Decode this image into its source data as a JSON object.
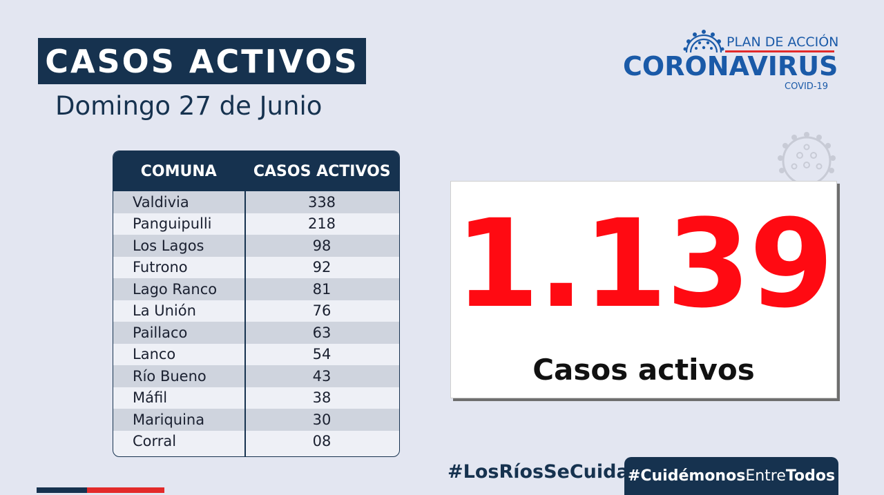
{
  "header": {
    "title": "CASOS ACTIVOS",
    "date": "Domingo 27 de Junio"
  },
  "logo": {
    "line1": "PLAN DE ACCIÓN",
    "line2": "CORONAVIRUS",
    "line3": "COVID-19"
  },
  "table": {
    "headers": [
      "COMUNA",
      "CASOS ACTIVOS"
    ],
    "rows": [
      {
        "comuna": "Valdivia",
        "casos": "338"
      },
      {
        "comuna": "Panguipulli",
        "casos": "218"
      },
      {
        "comuna": "Los Lagos",
        "casos": "98"
      },
      {
        "comuna": "Futrono",
        "casos": "92"
      },
      {
        "comuna": "Lago Ranco",
        "casos": "81"
      },
      {
        "comuna": "La Unión",
        "casos": "76"
      },
      {
        "comuna": "Paillaco",
        "casos": "63"
      },
      {
        "comuna": "Lanco",
        "casos": "54"
      },
      {
        "comuna": "Río Bueno",
        "casos": "43"
      },
      {
        "comuna": "Máfil",
        "casos": "38"
      },
      {
        "comuna": "Mariquina",
        "casos": "30"
      },
      {
        "comuna": "Corral",
        "casos": "08"
      }
    ]
  },
  "total": {
    "value": "1.139",
    "label": "Casos activos"
  },
  "footer": {
    "hashtag1": "#LosRíosSeCuida",
    "hashtag2_part1": "#Cuidémonos",
    "hashtag2_part2": "Entre",
    "hashtag2_part3": "Todos"
  },
  "colors": {
    "navy": "#16324f",
    "accent_red": "#ff0a12",
    "logo_blue": "#1a5aa8",
    "background": "#e3e6f1"
  },
  "icons": [
    "coronavirus-icon"
  ]
}
